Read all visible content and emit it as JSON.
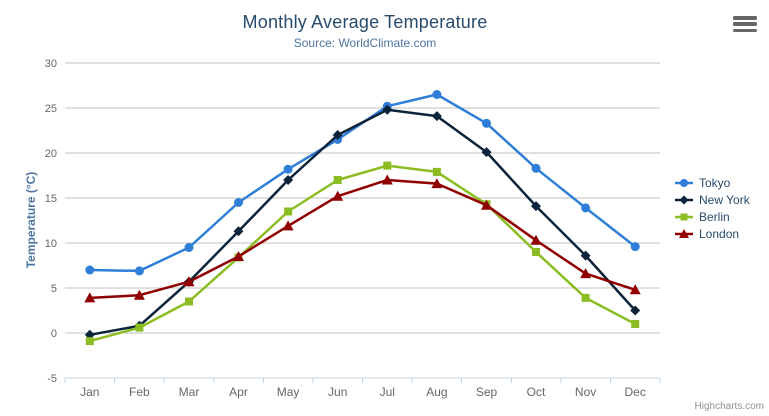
{
  "chart_data": {
    "type": "line",
    "title": "Monthly Average Temperature",
    "subtitle": "Source: WorldClimate.com",
    "xlabel": "",
    "ylabel": "Temperature (°C)",
    "ylim": [
      -5,
      30
    ],
    "y_tick_step": 5,
    "grid": true,
    "legend_position": "right",
    "categories": [
      "Jan",
      "Feb",
      "Mar",
      "Apr",
      "May",
      "Jun",
      "Jul",
      "Aug",
      "Sep",
      "Oct",
      "Nov",
      "Dec"
    ],
    "series": [
      {
        "name": "Tokyo",
        "color": "#2f7ed8",
        "marker": "circle",
        "values": [
          7.0,
          6.9,
          9.5,
          14.5,
          18.2,
          21.5,
          25.2,
          26.5,
          23.3,
          18.3,
          13.9,
          9.6
        ]
      },
      {
        "name": "New York",
        "color": "#0d233a",
        "marker": "diamond",
        "values": [
          -0.2,
          0.8,
          5.7,
          11.3,
          17.0,
          22.0,
          24.8,
          24.1,
          20.1,
          14.1,
          8.6,
          2.5
        ]
      },
      {
        "name": "Berlin",
        "color": "#8bbc21",
        "marker": "square",
        "values": [
          -0.9,
          0.6,
          3.5,
          8.4,
          13.5,
          17.0,
          18.6,
          17.9,
          14.3,
          9.0,
          3.9,
          1.0
        ]
      },
      {
        "name": "London",
        "color": "#910000",
        "marker": "triangle",
        "values": [
          3.9,
          4.2,
          5.7,
          8.5,
          11.9,
          15.2,
          17.0,
          16.6,
          14.2,
          10.3,
          6.6,
          4.8
        ]
      }
    ]
  },
  "credits_label": "Highcharts.com",
  "icons": {
    "context_menu": "hamburger-icon"
  },
  "colors": {
    "title": "#274b6d",
    "subtitle": "#4d759e",
    "axis_title": "#4d759e",
    "axis_label": "#666666",
    "grid_line": "#c0c0c0",
    "axis_line": "#c0d0e0",
    "legend_text": "#274b6d",
    "credits": "#909090",
    "menu_icon": "#666666"
  }
}
